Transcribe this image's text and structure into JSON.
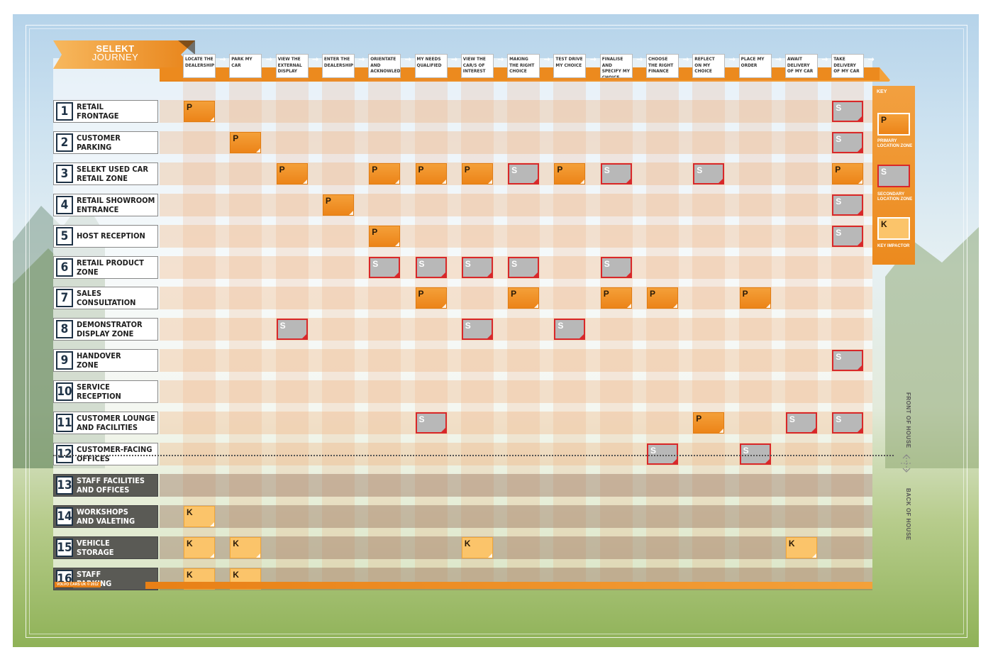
{
  "title": {
    "line1": "SELEKT",
    "line2": "JOURNEY"
  },
  "steps": [
    "LOCATE THE DEALERSHIP",
    "PARK MY CAR",
    "VIEW THE EXTERNAL DISPLAY",
    "ENTER THE DEALERSHIP",
    "ORIENTATE AND ACKNOWLEDGE",
    "MY NEEDS QUALIFIED",
    "VIEW THE CAR/S OF INTEREST",
    "MAKING THE RIGHT CHOICE",
    "TEST DRIVE MY CHOICE",
    "FINALISE AND SPECIFY MY CHOICE",
    "CHOOSE THE RIGHT FINANCE",
    "REFLECT ON MY CHOICE",
    "PLACE MY ORDER",
    "AWAIT DELIVERY OF MY CAR",
    "TAKE DELIVERY OF MY CAR"
  ],
  "arrow": "→",
  "zones": [
    {
      "num": "1",
      "l1": "RETAIL",
      "l2": "FRONTAGE",
      "back": false
    },
    {
      "num": "2",
      "l1": "CUSTOMER",
      "l2": "PARKING",
      "back": false
    },
    {
      "num": "3",
      "l1": "SELEKT USED CAR",
      "l2": "RETAIL ZONE",
      "back": false
    },
    {
      "num": "4",
      "l1": "RETAIL SHOWROOM",
      "l2": "ENTRANCE",
      "back": false
    },
    {
      "num": "5",
      "l1": "HOST RECEPTION",
      "l2": "",
      "back": false
    },
    {
      "num": "6",
      "l1": "RETAIL PRODUCT",
      "l2": "ZONE",
      "back": false
    },
    {
      "num": "7",
      "l1": "SALES",
      "l2": "CONSULTATION",
      "back": false
    },
    {
      "num": "8",
      "l1": "DEMONSTRATOR",
      "l2": "DISPLAY ZONE",
      "back": false
    },
    {
      "num": "9",
      "l1": "HANDOVER",
      "l2": "ZONE",
      "back": false
    },
    {
      "num": "10",
      "l1": "SERVICE",
      "l2": "RECEPTION",
      "back": false
    },
    {
      "num": "11",
      "l1": "CUSTOMER LOUNGE",
      "l2": "AND FACILITIES",
      "back": false
    },
    {
      "num": "12",
      "l1": "CUSTOMER-FACING",
      "l2": "OFFICES",
      "back": false
    },
    {
      "num": "13",
      "l1": "STAFF FACILITIES",
      "l2": "AND OFFICES",
      "back": true
    },
    {
      "num": "14",
      "l1": "WORKSHOPS",
      "l2": "AND VALETING",
      "back": true
    },
    {
      "num": "15",
      "l1": "VEHICLE",
      "l2": "STORAGE",
      "back": true
    },
    {
      "num": "16",
      "l1": "STAFF",
      "l2": "PARKING",
      "back": true
    }
  ],
  "cells": [
    {
      "zone": 1,
      "step": 1,
      "type": "P"
    },
    {
      "zone": 1,
      "step": 15,
      "type": "S"
    },
    {
      "zone": 2,
      "step": 2,
      "type": "P"
    },
    {
      "zone": 2,
      "step": 15,
      "type": "S"
    },
    {
      "zone": 3,
      "step": 3,
      "type": "P"
    },
    {
      "zone": 3,
      "step": 5,
      "type": "P"
    },
    {
      "zone": 3,
      "step": 6,
      "type": "P"
    },
    {
      "zone": 3,
      "step": 7,
      "type": "P"
    },
    {
      "zone": 3,
      "step": 8,
      "type": "S"
    },
    {
      "zone": 3,
      "step": 9,
      "type": "P"
    },
    {
      "zone": 3,
      "step": 10,
      "type": "S"
    },
    {
      "zone": 3,
      "step": 12,
      "type": "S"
    },
    {
      "zone": 3,
      "step": 15,
      "type": "P"
    },
    {
      "zone": 4,
      "step": 4,
      "type": "P"
    },
    {
      "zone": 4,
      "step": 15,
      "type": "S"
    },
    {
      "zone": 5,
      "step": 5,
      "type": "P"
    },
    {
      "zone": 5,
      "step": 15,
      "type": "S"
    },
    {
      "zone": 6,
      "step": 5,
      "type": "S"
    },
    {
      "zone": 6,
      "step": 6,
      "type": "S"
    },
    {
      "zone": 6,
      "step": 7,
      "type": "S"
    },
    {
      "zone": 6,
      "step": 8,
      "type": "S"
    },
    {
      "zone": 6,
      "step": 10,
      "type": "S"
    },
    {
      "zone": 7,
      "step": 6,
      "type": "P"
    },
    {
      "zone": 7,
      "step": 8,
      "type": "P"
    },
    {
      "zone": 7,
      "step": 10,
      "type": "P"
    },
    {
      "zone": 7,
      "step": 11,
      "type": "P"
    },
    {
      "zone": 7,
      "step": 13,
      "type": "P"
    },
    {
      "zone": 8,
      "step": 3,
      "type": "S"
    },
    {
      "zone": 8,
      "step": 7,
      "type": "S"
    },
    {
      "zone": 8,
      "step": 9,
      "type": "S"
    },
    {
      "zone": 9,
      "step": 15,
      "type": "S"
    },
    {
      "zone": 11,
      "step": 6,
      "type": "S"
    },
    {
      "zone": 11,
      "step": 12,
      "type": "P"
    },
    {
      "zone": 11,
      "step": 14,
      "type": "S"
    },
    {
      "zone": 11,
      "step": 15,
      "type": "S"
    },
    {
      "zone": 12,
      "step": 11,
      "type": "S"
    },
    {
      "zone": 12,
      "step": 13,
      "type": "S"
    },
    {
      "zone": 14,
      "step": 1,
      "type": "K"
    },
    {
      "zone": 15,
      "step": 1,
      "type": "K"
    },
    {
      "zone": 15,
      "step": 2,
      "type": "K"
    },
    {
      "zone": 15,
      "step": 7,
      "type": "K"
    },
    {
      "zone": 15,
      "step": 14,
      "type": "K"
    },
    {
      "zone": 16,
      "step": 1,
      "type": "K"
    },
    {
      "zone": 16,
      "step": 2,
      "type": "K"
    }
  ],
  "key": {
    "title": "KEY",
    "items": [
      {
        "letter": "P",
        "caption": "PRIMARY LOCATION ZONE"
      },
      {
        "letter": "S",
        "caption": "SECONDARY LOCATION ZONE"
      },
      {
        "letter": "K",
        "caption": "KEY IMPACTOR"
      }
    ]
  },
  "side": {
    "front": "FRONT OF HOUSE",
    "back": "BACK OF HOUSE"
  },
  "footer": "VOLVO CARS UK © 2012",
  "colors": {
    "primary": "#ec8418",
    "secondary": "#b8b8b8",
    "secondary_border": "#d8282a",
    "impactor": "#fbc46a",
    "zone_number": "#1e3246"
  }
}
